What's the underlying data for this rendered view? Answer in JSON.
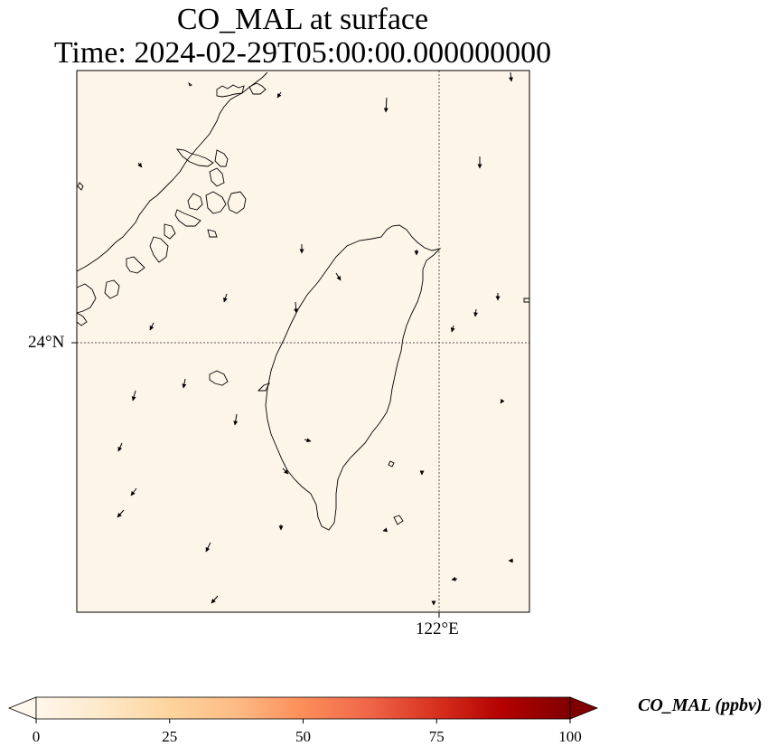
{
  "title": {
    "line1": "CO_MAL at surface",
    "line2": "Time: 2024-02-29T05:00:00.000000000"
  },
  "map": {
    "background_color": "#fef5e9",
    "gridline_style": "dotted",
    "lat_label": "24°N",
    "lon_label": "122°E"
  },
  "colorbar": {
    "label": "CO_MAL (ppbv)",
    "colormap": "OrRd",
    "colors": [
      "#fff7ec",
      "#fee8c8",
      "#fdd49e",
      "#fdbb84",
      "#fc8d59",
      "#ef6548",
      "#d7301f",
      "#b30000",
      "#7f0000"
    ],
    "vmin": 0,
    "vmax": 100,
    "extend": "both",
    "ticks": [
      "0",
      "25",
      "50",
      "75",
      "100"
    ]
  }
}
